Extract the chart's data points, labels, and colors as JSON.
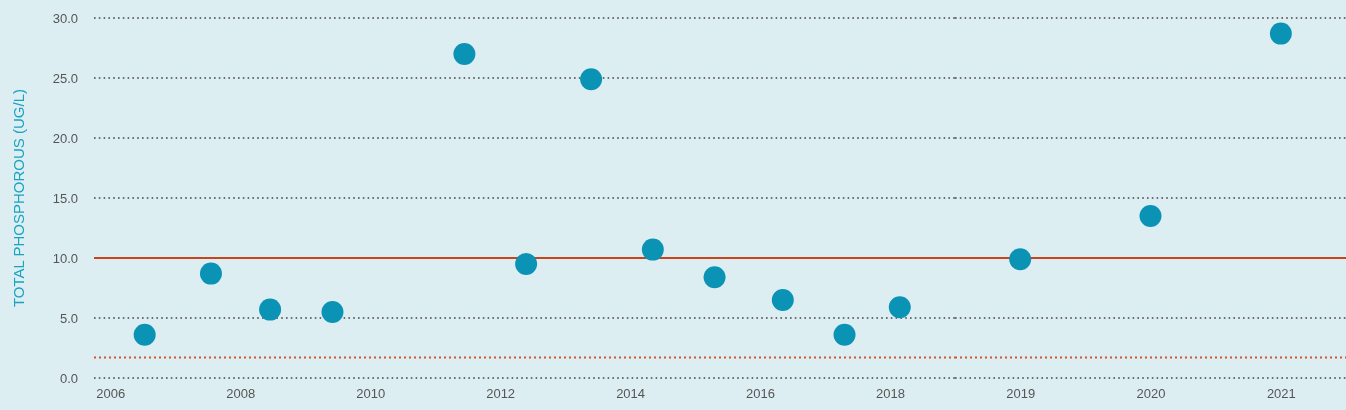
{
  "chart_data": [
    {
      "type": "scatter",
      "ylabel": "TOTAL PHOSPHOROUS (UG/L)",
      "x": [
        2006.53,
        2007.55,
        2008.46,
        2009.42,
        2011.45,
        2012.4,
        2013.4,
        2014.35,
        2015.3,
        2016.35,
        2017.3,
        2018.15
      ],
      "series": [
        {
          "color": "#0a93b5",
          "values": [
            3.6,
            8.7,
            5.7,
            5.5,
            27.0,
            9.5,
            24.9,
            10.7,
            8.4,
            6.5,
            3.6,
            5.9
          ]
        }
      ],
      "xlim": [
        2005.75,
        2019
      ],
      "xticks": [
        2006,
        2008,
        2010,
        2012,
        2014,
        2016,
        2018
      ],
      "ylim": [
        0,
        30
      ],
      "yticks": [
        {
          "value": 0,
          "label": "0.0"
        },
        {
          "value": 5,
          "label": "5.0"
        },
        {
          "value": 10,
          "label": "10.0"
        },
        {
          "value": 15,
          "label": "15.0"
        },
        {
          "value": 20,
          "label": "20.0"
        },
        {
          "value": 25,
          "label": "25.0"
        },
        {
          "value": 30,
          "label": "30.0"
        }
      ],
      "grid": "y",
      "marker": "circle",
      "ref_lines": [
        {
          "axis": "y",
          "value": 10,
          "color": "#c8441a",
          "line_style": "solid"
        },
        {
          "axis": "y",
          "value": 1.7,
          "color": "#d2542a",
          "line_style": "dotted"
        }
      ]
    },
    {
      "type": "scatter",
      "x": [
        2019,
        2020,
        2021
      ],
      "series": [
        {
          "color": "#0a93b5",
          "values": [
            9.9,
            13.5,
            28.7
          ]
        }
      ],
      "xlim": [
        2018.5,
        2021.5
      ],
      "xticks": [
        2019,
        2020,
        2021
      ],
      "ylim": [
        0,
        30
      ],
      "yticks": [
        0,
        5,
        10,
        15,
        20,
        25,
        30
      ],
      "tick_labels": "x",
      "grid": "y",
      "marker": "circle",
      "ref_lines": [
        {
          "axis": "y",
          "value": 10,
          "color": "#c8441a",
          "line_style": "solid"
        },
        {
          "axis": "y",
          "value": 1.7,
          "color": "#d2542a",
          "line_style": "dotted"
        }
      ]
    }
  ]
}
